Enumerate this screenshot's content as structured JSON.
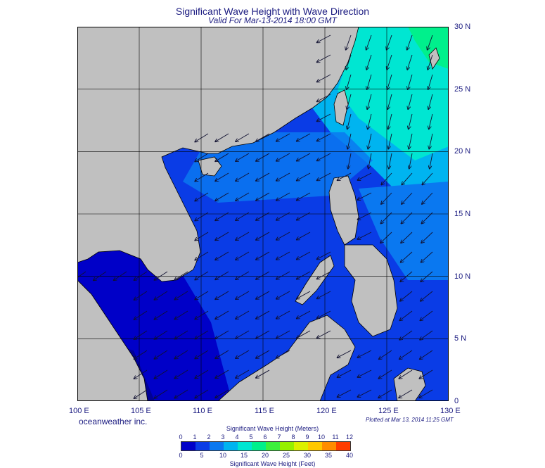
{
  "header": {
    "title": "Significant Wave Height with Wave Direction",
    "subtitle": "Valid For Mar-13-2014 18:00 GMT"
  },
  "map": {
    "lon_labels": [
      "100 E",
      "105 E",
      "110 E",
      "115 E",
      "120 E",
      "125 E",
      "130 E"
    ],
    "lat_labels": [
      "30 N",
      "25 N",
      "20 N",
      "15 N",
      "10 N",
      "5 N",
      "0"
    ],
    "lon_range": [
      100,
      130
    ],
    "lat_range": [
      0,
      30
    ],
    "land_color": "#c0c0c0",
    "grid_color": "#000000"
  },
  "footer": {
    "company": "oceanweather inc.",
    "plotted": "Plotted at Mar 13, 2014 11:25 GMT"
  },
  "legend": {
    "meters_title": "Significant Wave Height (Meters)",
    "feet_title": "Significant Wave Height (Feet)",
    "meters_ticks": [
      "0",
      "1",
      "2",
      "3",
      "4",
      "5",
      "6",
      "7",
      "8",
      "9",
      "10",
      "11",
      "12"
    ],
    "feet_ticks": [
      "0",
      "5",
      "10",
      "15",
      "20",
      "25",
      "30",
      "35",
      "40"
    ],
    "colors": [
      "#0000c8",
      "#0a3ce6",
      "#0a78f0",
      "#00b4f0",
      "#00e6d2",
      "#00f08c",
      "#3cf03c",
      "#96f000",
      "#dcf000",
      "#ffc800",
      "#ff8c00",
      "#ff3c00"
    ]
  }
}
